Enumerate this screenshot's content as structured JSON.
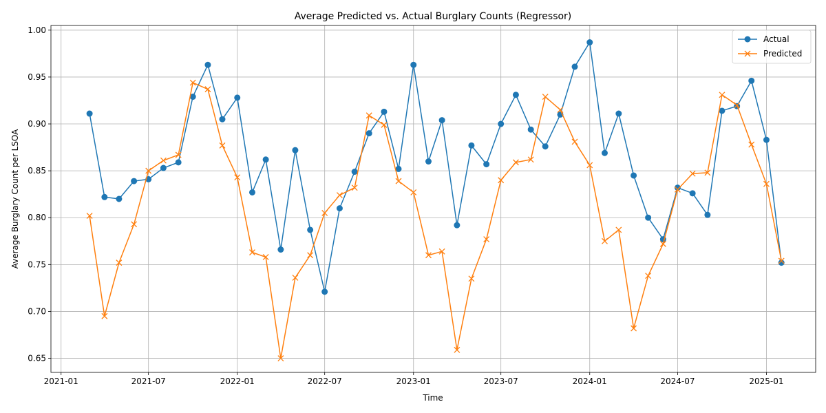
{
  "chart_data": {
    "type": "line",
    "title": "Average Predicted vs. Actual Burglary Counts (Regressor)",
    "xlabel": "Time",
    "ylabel": "Average Burglary Count per LSOA",
    "x_ticks": [
      "2021-01",
      "2021-07",
      "2022-01",
      "2022-07",
      "2023-01",
      "2023-07",
      "2024-01",
      "2024-07",
      "2025-01"
    ],
    "y_ticks": [
      "0.65",
      "0.70",
      "0.75",
      "0.80",
      "0.85",
      "0.90",
      "0.95",
      "1.00"
    ],
    "ylim": [
      0.635,
      1.005
    ],
    "xlim": [
      "2020-12-11",
      "2025-04-13"
    ],
    "grid": true,
    "legend_position": "top-right",
    "x": [
      "2021-03-01",
      "2021-04-01",
      "2021-05-01",
      "2021-06-01",
      "2021-07-01",
      "2021-08-01",
      "2021-09-01",
      "2021-10-01",
      "2021-11-01",
      "2021-12-01",
      "2022-01-01",
      "2022-02-01",
      "2022-03-01",
      "2022-04-01",
      "2022-05-01",
      "2022-06-01",
      "2022-07-01",
      "2022-08-01",
      "2022-09-01",
      "2022-10-01",
      "2022-11-01",
      "2022-12-01",
      "2023-01-01",
      "2023-02-01",
      "2023-03-01",
      "2023-04-01",
      "2023-05-01",
      "2023-06-01",
      "2023-07-01",
      "2023-08-01",
      "2023-09-01",
      "2023-10-01",
      "2023-11-01",
      "2023-12-01",
      "2024-01-01",
      "2024-02-01",
      "2024-03-01",
      "2024-04-01",
      "2024-05-01",
      "2024-06-01",
      "2024-07-01",
      "2024-08-01",
      "2024-09-01",
      "2024-10-01",
      "2024-11-01",
      "2024-12-01",
      "2025-01-01",
      "2025-02-01"
    ],
    "series": [
      {
        "name": "Actual",
        "color": "#1f77b4",
        "marker": "circle",
        "values": [
          0.911,
          0.822,
          0.82,
          0.839,
          0.841,
          0.853,
          0.859,
          0.929,
          0.963,
          0.905,
          0.928,
          0.827,
          0.862,
          0.766,
          0.872,
          0.787,
          0.721,
          0.81,
          0.849,
          0.89,
          0.913,
          0.852,
          0.963,
          0.86,
          0.904,
          0.792,
          0.877,
          0.857,
          0.9,
          0.931,
          0.894,
          0.876,
          0.91,
          0.961,
          0.987,
          0.869,
          0.911,
          0.845,
          0.8,
          0.777,
          0.832,
          0.826,
          0.803,
          0.914,
          0.919,
          0.946,
          0.883,
          0.752
        ]
      },
      {
        "name": "Predicted",
        "color": "#ff7f0e",
        "marker": "x",
        "values": [
          0.802,
          0.695,
          0.752,
          0.793,
          0.85,
          0.861,
          0.867,
          0.944,
          0.937,
          0.877,
          0.843,
          0.763,
          0.758,
          0.65,
          0.736,
          0.76,
          0.805,
          0.824,
          0.832,
          0.909,
          0.899,
          0.839,
          0.827,
          0.76,
          0.764,
          0.659,
          0.735,
          0.777,
          0.84,
          0.859,
          0.862,
          0.929,
          0.915,
          0.881,
          0.856,
          0.775,
          0.787,
          0.682,
          0.738,
          0.772,
          0.83,
          0.847,
          0.848,
          0.931,
          0.92,
          0.878,
          0.836,
          0.754
        ]
      }
    ]
  }
}
